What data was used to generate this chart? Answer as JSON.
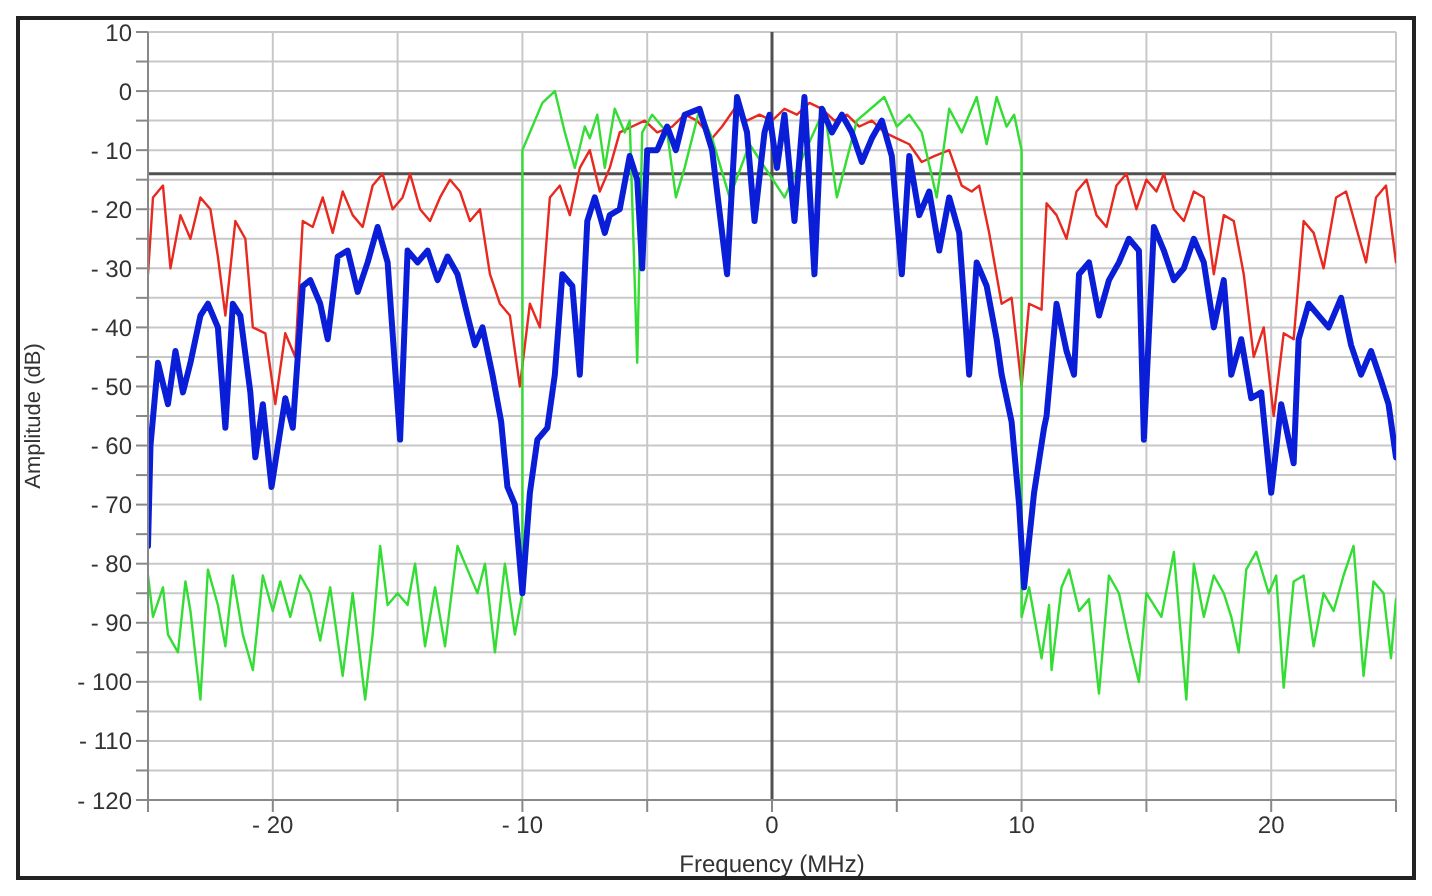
{
  "chart_data": {
    "type": "line",
    "xlabel": "Frequency (MHz)",
    "ylabel": "Amplitude (dB)",
    "xlim": [
      -25,
      25
    ],
    "ylim": [
      -120,
      10
    ],
    "xticks": [
      {
        "value": -25,
        "label": null
      },
      {
        "value": -20,
        "label": "- 20"
      },
      {
        "value": -15,
        "label": null
      },
      {
        "value": -10,
        "label": "- 10"
      },
      {
        "value": -5,
        "label": null
      },
      0,
      {
        "value": 5,
        "label": null
      },
      10,
      {
        "value": 15,
        "label": null
      },
      20,
      {
        "value": 25,
        "label": null
      }
    ],
    "yticks": [
      {
        "value": -120,
        "label": "- 120"
      },
      {
        "value": -115,
        "label": null
      },
      {
        "value": -110,
        "label": "- 110"
      },
      {
        "value": -105,
        "label": null
      },
      {
        "value": -100,
        "label": "- 100"
      },
      {
        "value": -95,
        "label": null
      },
      {
        "value": -90,
        "label": "- 90"
      },
      {
        "value": -85,
        "label": null
      },
      {
        "value": -80,
        "label": "- 80"
      },
      {
        "value": -75,
        "label": null
      },
      {
        "value": -70,
        "label": "- 70"
      },
      {
        "value": -65,
        "label": null
      },
      {
        "value": -60,
        "label": "- 60"
      },
      {
        "value": -55,
        "label": null
      },
      {
        "value": -50,
        "label": "- 50"
      },
      {
        "value": -45,
        "label": null
      },
      {
        "value": -40,
        "label": "- 40"
      },
      {
        "value": -35,
        "label": null
      },
      {
        "value": -30,
        "label": "- 30"
      },
      {
        "value": -25,
        "label": null
      },
      {
        "value": -20,
        "label": "- 20"
      },
      {
        "value": -15,
        "label": null
      },
      {
        "value": -10,
        "label": "- 10"
      },
      {
        "value": -5,
        "label": null
      },
      0,
      {
        "value": 5,
        "label": null
      },
      10
    ],
    "grid": true,
    "ref_lines": [
      {
        "axis": "x",
        "value": 0,
        "color": "#505050"
      },
      {
        "axis": "y",
        "value": -14,
        "color": "#505050"
      }
    ],
    "series": [
      {
        "color": "#e8291f",
        "x": [
          -25,
          -24.8,
          -24.4,
          -24.1,
          -23.7,
          -23.3,
          -22.9,
          -22.5,
          -22.2,
          -21.9,
          -21.5,
          -21.1,
          -20.8,
          -20.3,
          -19.9,
          -19.5,
          -19.1,
          -18.8,
          -18.4,
          -18,
          -17.6,
          -17.2,
          -16.8,
          -16.4,
          -16,
          -15.6,
          -15.2,
          -14.8,
          -14.5,
          -14.1,
          -13.7,
          -13.3,
          -12.9,
          -12.5,
          -12.1,
          -11.7,
          -11.3,
          -10.9,
          -10.5,
          -10.1,
          -9.7,
          -9.3,
          -8.9,
          -8.5,
          -8.1,
          -7.7,
          -7.3,
          -6.9,
          -6.5,
          -6.1,
          -5.6,
          -5.1,
          -4.6,
          -4,
          -3.5,
          -3,
          -2.4,
          -2,
          -1.5,
          -1,
          -0.5,
          0,
          0.5,
          1,
          1.5,
          2,
          2.5,
          3,
          3.5,
          4,
          4.5,
          5,
          5.5,
          6,
          6.5,
          7.1,
          7.6,
          8,
          8.3,
          8.7,
          9.2,
          9.6,
          10,
          10.3,
          10.8,
          11,
          11.4,
          11.8,
          12.2,
          12.6,
          13,
          13.4,
          13.8,
          14.2,
          14.6,
          15,
          15.4,
          15.7,
          16.1,
          16.5,
          16.9,
          17.3,
          17.7,
          18.1,
          18.5,
          18.9,
          19.3,
          19.7,
          20.1,
          20.5,
          20.9,
          21.3,
          21.7,
          22.1,
          22.6,
          23,
          23.4,
          23.8,
          24.2,
          24.6,
          25
        ],
        "values": [
          -31,
          -18,
          -16,
          -30,
          -21,
          -25,
          -18,
          -20,
          -28,
          -38,
          -22,
          -25,
          -40,
          -41,
          -53,
          -41,
          -45,
          -22,
          -23,
          -18,
          -24,
          -17,
          -21,
          -23,
          -16,
          -14,
          -20,
          -18,
          -14,
          -20,
          -22,
          -18,
          -15,
          -17,
          -22,
          -20,
          -31,
          -36,
          -38,
          -50,
          -36,
          -40,
          -18,
          -16,
          -21,
          -13,
          -10,
          -17,
          -13,
          -7,
          -6,
          -5,
          -7,
          -6,
          -4,
          -5,
          -8,
          -6,
          -3,
          -5,
          -4,
          -5,
          -3,
          -4,
          -2,
          -3,
          -5,
          -4,
          -6,
          -5,
          -7,
          -8,
          -9,
          -12,
          -11,
          -10,
          -16,
          -17,
          -16,
          -24,
          -36,
          -35,
          -50,
          -36,
          -37,
          -19,
          -21,
          -25,
          -17,
          -15,
          -21,
          -23,
          -16,
          -14,
          -20,
          -15,
          -17,
          -14,
          -20,
          -22,
          -17,
          -18,
          -31,
          -21,
          -22,
          -31,
          -45,
          -40,
          -55,
          -41,
          -42,
          -22,
          -24,
          -30,
          -18,
          -17,
          -23,
          -29,
          -18,
          -16,
          -29
        ]
      },
      {
        "color": "#33dd33",
        "x": [
          -25,
          -24.8,
          -24.4,
          -24.2,
          -23.8,
          -23.5,
          -23.3,
          -22.9,
          -22.6,
          -22.2,
          -21.9,
          -21.6,
          -21.2,
          -20.8,
          -20.4,
          -20,
          -19.7,
          -19.3,
          -18.9,
          -18.5,
          -18.1,
          -17.7,
          -17.2,
          -16.8,
          -16.3,
          -16,
          -15.7,
          -15.4,
          -15,
          -14.6,
          -14.3,
          -13.9,
          -13.5,
          -13.1,
          -12.6,
          -12.2,
          -11.8,
          -11.5,
          -11.1,
          -10.7,
          -10.3,
          -10,
          -10,
          -9.7,
          -9.5,
          -9.2,
          -8.7,
          -8.3,
          -7.9,
          -7.5,
          -7.3,
          -7,
          -6.7,
          -6.3,
          -5.9,
          -5.7,
          -5.4,
          -5.2,
          -4.8,
          -4.2,
          -3.85,
          -3.5,
          -2.9,
          -2.4,
          -1.7,
          -0.9,
          0.5,
          2.1,
          2.6,
          3.4,
          4.5,
          5,
          5.5,
          6,
          6.6,
          7.1,
          7.6,
          8.2,
          8.6,
          9,
          9.4,
          9.7,
          10,
          10,
          10.3,
          10.8,
          11.1,
          11.2,
          11.6,
          11.9,
          12.3,
          12.7,
          13.1,
          13.5,
          13.9,
          14.3,
          14.7,
          15,
          15.6,
          16.1,
          16.6,
          16.9,
          17.3,
          17.7,
          18.1,
          18.4,
          18.7,
          19,
          19.4,
          19.9,
          20.2,
          20.5,
          20.9,
          21.3,
          21.7,
          22.1,
          22.5,
          22.9,
          23.3,
          23.7,
          24.1,
          24.5,
          24.8,
          25
        ],
        "values": [
          -82,
          -89,
          -84,
          -92,
          -95,
          -83,
          -88,
          -103,
          -81,
          -87,
          -94,
          -82,
          -92,
          -98,
          -82,
          -88,
          -83,
          -89,
          -82,
          -85,
          -93,
          -84,
          -99,
          -85,
          -103,
          -92,
          -77,
          -87,
          -85,
          -87,
          -80,
          -94,
          -84,
          -94,
          -77,
          -81,
          -85,
          -80,
          -95,
          -80,
          -92,
          -85,
          -10,
          -7,
          -5,
          -2,
          0,
          -7,
          -13,
          -6,
          -8,
          -4,
          -13,
          -3,
          -7,
          -5,
          -46,
          -7,
          -4,
          -7,
          -18,
          -13,
          -3,
          -8,
          -18,
          -9,
          -18,
          -3,
          -18,
          -5,
          -1,
          -6,
          -4,
          -7,
          -18,
          -3,
          -7,
          -1,
          -9,
          -1,
          -6,
          -4,
          -10,
          -89,
          -84,
          -96,
          -87,
          -98,
          -84,
          -81,
          -88,
          -86,
          -102,
          -82,
          -85,
          -93,
          -100,
          -85,
          -89,
          -78,
          -103,
          -80,
          -89,
          -82,
          -85,
          -89,
          -95,
          -81,
          -78,
          -85,
          -82,
          -101,
          -83,
          -82,
          -94,
          -85,
          -88,
          -82,
          -77,
          -99,
          -83,
          -85,
          -96,
          -86
        ]
      },
      {
        "color": "#0a1ed8",
        "x": [
          -25,
          -24.9,
          -24.6,
          -24.2,
          -23.9,
          -23.6,
          -23.3,
          -22.9,
          -22.6,
          -22.2,
          -21.9,
          -21.6,
          -21.3,
          -20.9,
          -20.7,
          -20.4,
          -20.05,
          -19.5,
          -19.2,
          -18.8,
          -18.5,
          -18.1,
          -17.8,
          -17.4,
          -17,
          -16.6,
          -16.2,
          -15.8,
          -15.4,
          -14.9,
          -14.6,
          -14.2,
          -13.8,
          -13.4,
          -13,
          -12.6,
          -12.2,
          -11.9,
          -11.6,
          -11.2,
          -10.85,
          -10.6,
          -10.3,
          -10,
          -9.7,
          -9.4,
          -9,
          -8.7,
          -8.4,
          -8,
          -7.7,
          -7.4,
          -7.1,
          -6.7,
          -6.5,
          -6.1,
          -5.7,
          -5.4,
          -5.2,
          -5,
          -4.6,
          -4.2,
          -3.85,
          -3.5,
          -2.9,
          -2.4,
          -2.2,
          -1.8,
          -1.4,
          -1,
          -0.7,
          -0.3,
          -0.1,
          0.2,
          0.5,
          0.9,
          1.3,
          1.7,
          2,
          2.4,
          2.8,
          3.2,
          3.6,
          4,
          4.4,
          4.8,
          5.2,
          5.5,
          5.9,
          6.3,
          6.7,
          7.1,
          7.5,
          7.9,
          8.2,
          8.6,
          9,
          9.2,
          9.6,
          9.9,
          10.1,
          10.5,
          10.9,
          11,
          11.4,
          11.8,
          12.1,
          12.3,
          12.7,
          13.1,
          13.5,
          13.9,
          14.3,
          14.7,
          14.9,
          15.3,
          15.7,
          16.1,
          16.5,
          16.9,
          17.3,
          17.7,
          18.1,
          18.4,
          18.8,
          19.2,
          19.6,
          20,
          20.4,
          20.9,
          21.1,
          21.5,
          21.9,
          22.3,
          22.8,
          23.2,
          23.6,
          24,
          24.4,
          24.7,
          25
        ],
        "values": [
          -77,
          -60,
          -46,
          -53,
          -44,
          -51,
          -46,
          -38,
          -36,
          -40,
          -57,
          -36,
          -38,
          -51,
          -62,
          -53,
          -67,
          -52,
          -57,
          -33,
          -32,
          -36,
          -42,
          -28,
          -27,
          -34,
          -29,
          -23,
          -29,
          -59,
          -27,
          -29,
          -27,
          -32,
          -28,
          -31,
          -38,
          -43,
          -40,
          -48,
          -56,
          -67,
          -70,
          -85,
          -68,
          -59,
          -57,
          -48,
          -31,
          -33,
          -48,
          -22,
          -18,
          -24,
          -21,
          -20,
          -11,
          -15,
          -30,
          -10,
          -10,
          -6,
          -10,
          -4,
          -3,
          -10,
          -17,
          -31,
          -1,
          -7,
          -22,
          -7,
          -4,
          -13,
          -4,
          -22,
          -1,
          -31,
          -3,
          -7,
          -4,
          -7,
          -12,
          -8,
          -5,
          -11,
          -31,
          -11,
          -21,
          -17,
          -27,
          -18,
          -24,
          -48,
          -29,
          -33,
          -42,
          -48,
          -56,
          -70,
          -84,
          -68,
          -57,
          -55,
          -36,
          -44,
          -48,
          -31,
          -29,
          -38,
          -32,
          -29,
          -25,
          -27,
          -59,
          -23,
          -27,
          -32,
          -30,
          -25,
          -29,
          -40,
          -32,
          -48,
          -42,
          -52,
          -51,
          -68,
          -53,
          -63,
          -42,
          -36,
          -38,
          -40,
          -35,
          -43,
          -48,
          -44,
          -49,
          -53,
          -62
        ]
      }
    ]
  }
}
